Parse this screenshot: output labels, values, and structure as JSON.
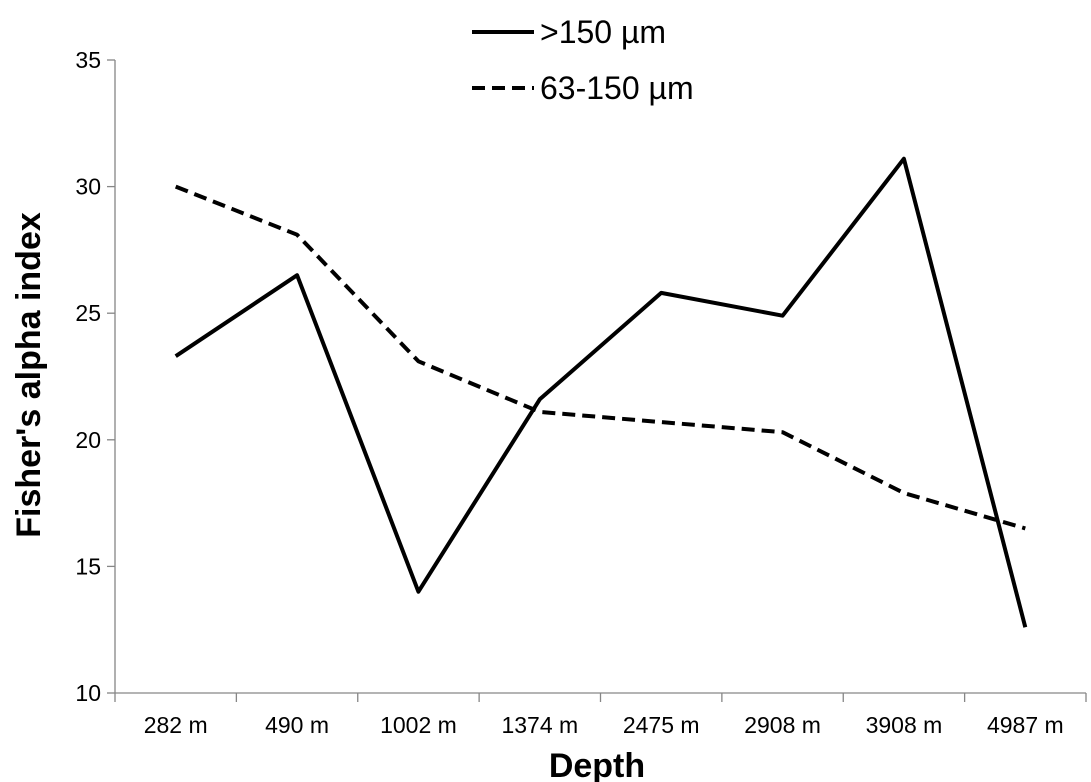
{
  "chart_data": {
    "type": "line",
    "title": "",
    "xlabel": "Depth",
    "ylabel": "Fisher's alpha index",
    "categories": [
      "282 m",
      "490 m",
      "1002 m",
      "1374 m",
      "2475 m",
      "2908 m",
      "3908 m",
      "4987 m"
    ],
    "ylim": [
      10,
      35
    ],
    "yticks": [
      10,
      15,
      20,
      25,
      30,
      35
    ],
    "grid": false,
    "legend_position": "top",
    "series": [
      {
        "name": ">150 µm",
        "values": [
          23.3,
          26.5,
          14.0,
          21.6,
          25.8,
          24.9,
          31.1,
          12.6
        ],
        "color": "#000000",
        "dash": "solid"
      },
      {
        "name": "63-150 µm",
        "values": [
          30.0,
          28.1,
          23.1,
          21.1,
          20.7,
          20.3,
          17.9,
          16.5
        ],
        "color": "#000000",
        "dash": "dashed"
      }
    ]
  }
}
